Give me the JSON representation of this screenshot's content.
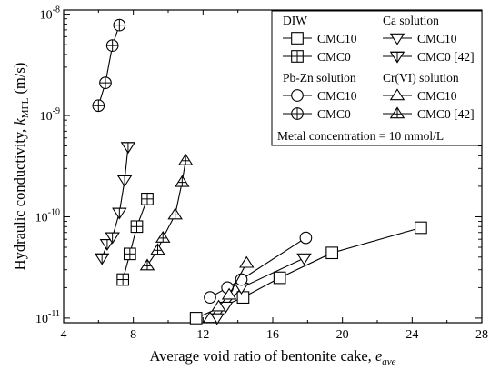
{
  "chart_data": {
    "type": "scatter",
    "xlabel": {
      "main": "Average void ratio of bentonite cake, ",
      "var": "e",
      "sub": "ave"
    },
    "ylabel": {
      "main": "Hydraulic conductivity, ",
      "var": "k",
      "sub": "MFL",
      "unit": " (m/s)"
    },
    "xlim": [
      4,
      28
    ],
    "x_ticks": [
      4,
      8,
      12,
      16,
      20,
      24,
      28
    ],
    "y_log": true,
    "ylim": [
      9e-12,
      1.1e-08
    ],
    "y_ticks": [
      {
        "value": 1e-11,
        "base": "10",
        "exp": "-11"
      },
      {
        "value": 1e-10,
        "base": "10",
        "exp": "-10"
      },
      {
        "value": 1e-09,
        "base": "10",
        "exp": "-9"
      },
      {
        "value": 1e-08,
        "base": "10",
        "exp": "-8"
      }
    ],
    "legend_groups": [
      "DIW",
      "Ca solution",
      "Pb-Zn solution",
      "Cr(VI) solution"
    ],
    "annotation": "Metal concentration = 10 mmol/L",
    "legend_position": "top-right",
    "series": [
      {
        "group": "DIW",
        "name": "CMC10",
        "marker": "square",
        "x": [
          11.6,
          14.3,
          16.4,
          19.4,
          24.5
        ],
        "y": [
          1e-11,
          1.6e-11,
          2.5e-11,
          4.4e-11,
          7.8e-11
        ]
      },
      {
        "group": "DIW",
        "name": "CMC0",
        "marker": "square-plus",
        "x": [
          7.4,
          7.8,
          8.2,
          8.8
        ],
        "y": [
          2.4e-11,
          4.3e-11,
          8e-11,
          1.5e-10
        ]
      },
      {
        "group": "Ca solution",
        "name": "CMC10",
        "marker": "triangle-down",
        "x": [
          12.8,
          13.3,
          14.2,
          17.8
        ],
        "y": [
          1e-11,
          1.3e-11,
          2e-11,
          3.9e-11
        ]
      },
      {
        "group": "Ca solution",
        "name": "CMC0 [42]",
        "marker": "triangle-down-plus",
        "x": [
          6.2,
          6.5,
          6.8,
          7.2,
          7.5,
          7.7
        ],
        "y": [
          3.9e-11,
          5.4e-11,
          6.3e-11,
          1.1e-10,
          2.3e-10,
          4.9e-10
        ]
      },
      {
        "group": "Pb-Zn solution",
        "name": "CMC10",
        "marker": "circle",
        "x": [
          12.4,
          13.4,
          14.2,
          17.9
        ],
        "y": [
          1.6e-11,
          2e-11,
          2.4e-11,
          6.2e-11
        ]
      },
      {
        "group": "Pb-Zn solution",
        "name": "CMC0",
        "marker": "circle-plus",
        "x": [
          6.0,
          6.4,
          6.8,
          7.2
        ],
        "y": [
          1.25e-09,
          2.1e-09,
          4.9e-09,
          7.8e-09
        ]
      },
      {
        "group": "Cr(VI) solution",
        "name": "CMC10",
        "marker": "triangle-up",
        "x": [
          12.4,
          12.9,
          13.5,
          14.5
        ],
        "y": [
          1e-11,
          1.3e-11,
          1.7e-11,
          3.5e-11
        ]
      },
      {
        "group": "Cr(VI) solution",
        "name": "CMC0 [42]",
        "marker": "triangle-up-plus",
        "x": [
          8.8,
          9.4,
          9.7,
          10.4,
          10.8,
          11.0
        ],
        "y": [
          3.3e-11,
          4.7e-11,
          6.2e-11,
          1.05e-10,
          2.2e-10,
          3.6e-10
        ]
      }
    ]
  }
}
